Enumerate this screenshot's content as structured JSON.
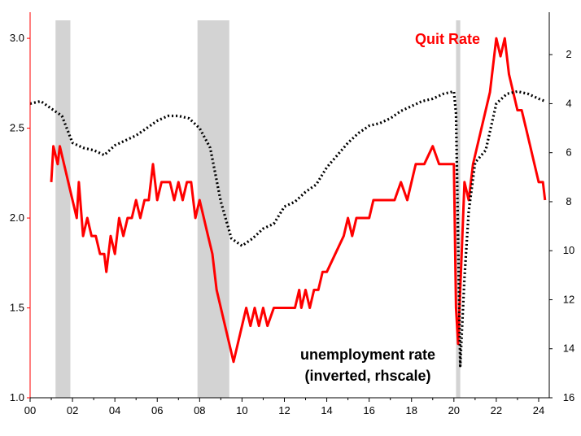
{
  "chart_data": {
    "type": "line",
    "title": "",
    "xlabel": "",
    "ylabel": "",
    "xlim": [
      2000,
      2024.5
    ],
    "ylim_left": [
      1.0,
      3.1
    ],
    "ylim_right": [
      16,
      0.6
    ],
    "right_axis_inverted": true,
    "grid": false,
    "legend": "none",
    "x_tick_labels": [
      "00",
      "02",
      "04",
      "06",
      "08",
      "10",
      "12",
      "14",
      "16",
      "18",
      "20",
      "22",
      "24"
    ],
    "x_tick_values": [
      2000,
      2002,
      2004,
      2006,
      2008,
      2010,
      2012,
      2014,
      2016,
      2018,
      2020,
      2022,
      2024
    ],
    "y_left_tick_labels": [
      "1.0",
      "1.5",
      "2.0",
      "2.5",
      "3.0"
    ],
    "y_left_tick_values": [
      1.0,
      1.5,
      2.0,
      2.5,
      3.0
    ],
    "y_right_tick_labels": [
      "2",
      "4",
      "6",
      "8",
      "10",
      "12",
      "14",
      "16"
    ],
    "y_right_tick_values": [
      2,
      4,
      6,
      8,
      10,
      12,
      14,
      16
    ],
    "recessions": [
      [
        2001.2,
        2001.9
      ],
      [
        2007.9,
        2009.4
      ],
      [
        2020.1,
        2020.3
      ]
    ],
    "annotations": [
      {
        "text": "Quit Rate",
        "color": "#ff0000"
      },
      {
        "text": "unemployment rate",
        "color": "#000000"
      },
      {
        "text": "(inverted, rhscale)",
        "color": "#000000"
      }
    ],
    "series": [
      {
        "axis": "left",
        "color": "#ff0000",
        "style": "solid",
        "points": [
          [
            2001.0,
            2.2
          ],
          [
            2001.1,
            2.4
          ],
          [
            2001.3,
            2.3
          ],
          [
            2001.4,
            2.4
          ],
          [
            2001.6,
            2.3
          ],
          [
            2001.8,
            2.2
          ],
          [
            2002.0,
            2.1
          ],
          [
            2002.2,
            2.0
          ],
          [
            2002.3,
            2.2
          ],
          [
            2002.5,
            1.9
          ],
          [
            2002.7,
            2.0
          ],
          [
            2002.9,
            1.9
          ],
          [
            2003.1,
            1.9
          ],
          [
            2003.3,
            1.8
          ],
          [
            2003.5,
            1.8
          ],
          [
            2003.6,
            1.7
          ],
          [
            2003.8,
            1.9
          ],
          [
            2004.0,
            1.8
          ],
          [
            2004.2,
            2.0
          ],
          [
            2004.4,
            1.9
          ],
          [
            2004.6,
            2.0
          ],
          [
            2004.8,
            2.0
          ],
          [
            2005.0,
            2.1
          ],
          [
            2005.2,
            2.0
          ],
          [
            2005.4,
            2.1
          ],
          [
            2005.6,
            2.1
          ],
          [
            2005.8,
            2.3
          ],
          [
            2006.0,
            2.1
          ],
          [
            2006.2,
            2.2
          ],
          [
            2006.4,
            2.2
          ],
          [
            2006.6,
            2.2
          ],
          [
            2006.8,
            2.1
          ],
          [
            2007.0,
            2.2
          ],
          [
            2007.2,
            2.1
          ],
          [
            2007.4,
            2.2
          ],
          [
            2007.6,
            2.2
          ],
          [
            2007.8,
            2.0
          ],
          [
            2008.0,
            2.1
          ],
          [
            2008.2,
            2.0
          ],
          [
            2008.4,
            1.9
          ],
          [
            2008.6,
            1.8
          ],
          [
            2008.8,
            1.6
          ],
          [
            2009.0,
            1.5
          ],
          [
            2009.2,
            1.4
          ],
          [
            2009.4,
            1.3
          ],
          [
            2009.6,
            1.2
          ],
          [
            2009.8,
            1.3
          ],
          [
            2010.0,
            1.4
          ],
          [
            2010.2,
            1.5
          ],
          [
            2010.4,
            1.4
          ],
          [
            2010.6,
            1.5
          ],
          [
            2010.8,
            1.4
          ],
          [
            2011.0,
            1.5
          ],
          [
            2011.2,
            1.4
          ],
          [
            2011.5,
            1.5
          ],
          [
            2012.0,
            1.5
          ],
          [
            2012.5,
            1.5
          ],
          [
            2012.7,
            1.6
          ],
          [
            2012.8,
            1.5
          ],
          [
            2013.0,
            1.6
          ],
          [
            2013.2,
            1.5
          ],
          [
            2013.4,
            1.6
          ],
          [
            2013.6,
            1.6
          ],
          [
            2013.8,
            1.7
          ],
          [
            2014.0,
            1.7
          ],
          [
            2014.4,
            1.8
          ],
          [
            2014.8,
            1.9
          ],
          [
            2015.0,
            2.0
          ],
          [
            2015.2,
            1.9
          ],
          [
            2015.4,
            2.0
          ],
          [
            2015.6,
            2.0
          ],
          [
            2015.8,
            2.0
          ],
          [
            2016.0,
            2.0
          ],
          [
            2016.2,
            2.1
          ],
          [
            2016.5,
            2.1
          ],
          [
            2016.8,
            2.1
          ],
          [
            2017.2,
            2.1
          ],
          [
            2017.5,
            2.2
          ],
          [
            2017.8,
            2.1
          ],
          [
            2018.0,
            2.2
          ],
          [
            2018.2,
            2.3
          ],
          [
            2018.6,
            2.3
          ],
          [
            2019.0,
            2.4
          ],
          [
            2019.3,
            2.3
          ],
          [
            2019.6,
            2.3
          ],
          [
            2020.0,
            2.3
          ],
          [
            2020.1,
            1.5
          ],
          [
            2020.2,
            1.3
          ],
          [
            2020.3,
            1.6
          ],
          [
            2020.5,
            2.2
          ],
          [
            2020.7,
            2.1
          ],
          [
            2020.9,
            2.3
          ],
          [
            2021.1,
            2.4
          ],
          [
            2021.3,
            2.5
          ],
          [
            2021.5,
            2.6
          ],
          [
            2021.7,
            2.7
          ],
          [
            2021.9,
            2.9
          ],
          [
            2022.0,
            3.0
          ],
          [
            2022.2,
            2.9
          ],
          [
            2022.4,
            3.0
          ],
          [
            2022.5,
            2.9
          ],
          [
            2022.6,
            2.8
          ],
          [
            2022.8,
            2.7
          ],
          [
            2023.0,
            2.6
          ],
          [
            2023.2,
            2.6
          ],
          [
            2023.4,
            2.5
          ],
          [
            2023.6,
            2.4
          ],
          [
            2023.8,
            2.3
          ],
          [
            2024.0,
            2.2
          ],
          [
            2024.2,
            2.2
          ],
          [
            2024.3,
            2.1
          ]
        ]
      },
      {
        "axis": "right",
        "color": "#000000",
        "style": "dotted",
        "points": [
          [
            2000.0,
            4.0
          ],
          [
            2000.5,
            3.9
          ],
          [
            2001.0,
            4.2
          ],
          [
            2001.5,
            4.5
          ],
          [
            2002.0,
            5.6
          ],
          [
            2002.5,
            5.8
          ],
          [
            2003.0,
            5.9
          ],
          [
            2003.5,
            6.1
          ],
          [
            2004.0,
            5.7
          ],
          [
            2004.5,
            5.5
          ],
          [
            2005.0,
            5.3
          ],
          [
            2005.5,
            5.0
          ],
          [
            2006.0,
            4.7
          ],
          [
            2006.5,
            4.5
          ],
          [
            2007.0,
            4.5
          ],
          [
            2007.5,
            4.6
          ],
          [
            2008.0,
            5.0
          ],
          [
            2008.5,
            5.8
          ],
          [
            2009.0,
            8.0
          ],
          [
            2009.5,
            9.5
          ],
          [
            2010.0,
            9.8
          ],
          [
            2010.5,
            9.5
          ],
          [
            2011.0,
            9.1
          ],
          [
            2011.5,
            8.9
          ],
          [
            2012.0,
            8.2
          ],
          [
            2012.5,
            8.0
          ],
          [
            2013.0,
            7.6
          ],
          [
            2013.5,
            7.3
          ],
          [
            2014.0,
            6.6
          ],
          [
            2014.5,
            6.1
          ],
          [
            2015.0,
            5.6
          ],
          [
            2015.5,
            5.2
          ],
          [
            2016.0,
            4.9
          ],
          [
            2016.5,
            4.8
          ],
          [
            2017.0,
            4.6
          ],
          [
            2017.5,
            4.3
          ],
          [
            2018.0,
            4.1
          ],
          [
            2018.5,
            3.9
          ],
          [
            2019.0,
            3.8
          ],
          [
            2019.5,
            3.6
          ],
          [
            2020.0,
            3.5
          ],
          [
            2020.1,
            4.4
          ],
          [
            2020.3,
            14.7
          ],
          [
            2020.5,
            11.1
          ],
          [
            2020.7,
            8.4
          ],
          [
            2021.0,
            6.4
          ],
          [
            2021.5,
            5.9
          ],
          [
            2022.0,
            4.0
          ],
          [
            2022.5,
            3.6
          ],
          [
            2023.0,
            3.5
          ],
          [
            2023.5,
            3.6
          ],
          [
            2024.0,
            3.8
          ],
          [
            2024.3,
            3.9
          ]
        ]
      }
    ]
  }
}
